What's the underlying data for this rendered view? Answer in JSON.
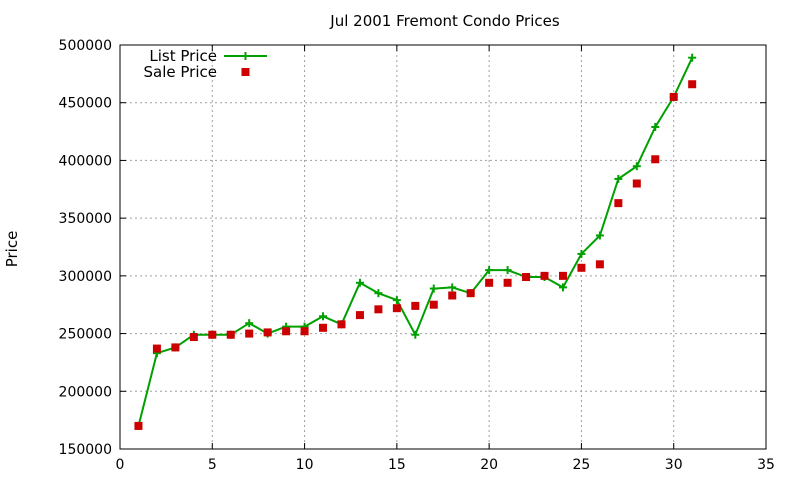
{
  "chart_data": {
    "type": "line",
    "title": "Jul 2001 Fremont Condo Prices",
    "xlabel": "",
    "ylabel": "Price",
    "xlim": [
      0,
      35
    ],
    "ylim": [
      150000,
      500000
    ],
    "x_ticks": [
      0,
      5,
      10,
      15,
      20,
      25,
      30,
      35
    ],
    "y_ticks": [
      150000,
      200000,
      250000,
      300000,
      350000,
      400000,
      450000,
      500000
    ],
    "grid": true,
    "legend_position": "top-left",
    "series": [
      {
        "name": "List Price",
        "style": "line-with-plus-markers",
        "color": "#00a000",
        "x": [
          1,
          2,
          3,
          4,
          5,
          6,
          7,
          8,
          9,
          10,
          11,
          12,
          13,
          14,
          15,
          16,
          17,
          18,
          19,
          20,
          21,
          22,
          23,
          24,
          25,
          26,
          27,
          28,
          29,
          30,
          31
        ],
        "values": [
          170000,
          233000,
          238000,
          249000,
          249000,
          249000,
          259000,
          250000,
          256000,
          256000,
          265000,
          258000,
          294000,
          285000,
          279000,
          249000,
          289000,
          290000,
          285000,
          305000,
          305000,
          299000,
          299000,
          290000,
          319000,
          335000,
          384000,
          395000,
          429000,
          455000,
          489000
        ]
      },
      {
        "name": "Sale Price",
        "style": "square-markers",
        "color": "#cc0000",
        "x": [
          1,
          2,
          3,
          4,
          5,
          6,
          7,
          8,
          9,
          10,
          11,
          12,
          13,
          14,
          15,
          16,
          17,
          18,
          19,
          20,
          21,
          22,
          23,
          24,
          25,
          26,
          27,
          28,
          29,
          30,
          31
        ],
        "values": [
          170000,
          237000,
          238000,
          247000,
          249000,
          249000,
          250000,
          251000,
          252000,
          252000,
          255000,
          258000,
          266000,
          271000,
          272000,
          274000,
          275000,
          283000,
          285000,
          294000,
          294000,
          299000,
          300000,
          300000,
          307000,
          310000,
          363000,
          380000,
          401000,
          455000,
          466000
        ]
      }
    ]
  }
}
